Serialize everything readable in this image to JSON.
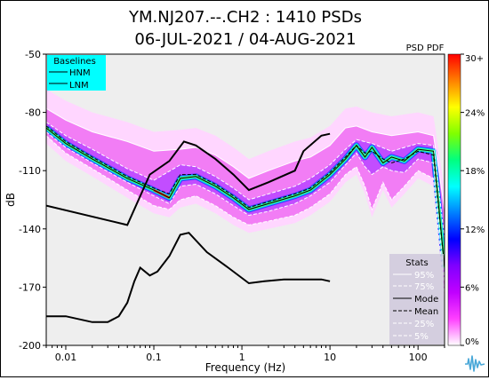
{
  "chart_data": {
    "type": "heatmap",
    "title_line1": "YM.NJ207.--.CH2 : 1410 PSDs",
    "title_line2": "06-JUL-2021 / 04-AUG-2021",
    "xlabel": "Frequency (Hz)",
    "ylabel": "dB",
    "xscale": "log",
    "xlim": [
      0.006,
      200
    ],
    "ylim": [
      -200,
      -50
    ],
    "yticks": [
      -50,
      -80,
      -110,
      -140,
      -170,
      -200
    ],
    "xticks": [
      {
        "value": 0.01,
        "label": "0.01"
      },
      {
        "value": 0.1,
        "label": "0.1"
      },
      {
        "value": 1,
        "label": "1"
      },
      {
        "value": 10,
        "label": "10"
      },
      {
        "value": 100,
        "label": "100"
      }
    ],
    "colorbar": {
      "title": "PSD PDF",
      "labels": [
        "30+",
        "24%",
        "18%",
        "12%",
        "6%",
        "0%"
      ],
      "stops": [
        "#ff0000",
        "#ff8000",
        "#ffff00",
        "#80ff00",
        "#00ff80",
        "#00ffff",
        "#0080ff",
        "#0000ff",
        "#8000ff",
        "#c000ff",
        "#ff40ff",
        "#ffffff"
      ]
    },
    "baselines": {
      "title": "Baselines",
      "entries": [
        "HNM",
        "LNM"
      ],
      "background": "#00ffff",
      "hnm": [
        [
          0.006,
          -128
        ],
        [
          0.05,
          -138
        ],
        [
          0.09,
          -112
        ],
        [
          0.15,
          -105
        ],
        [
          0.22,
          -95
        ],
        [
          0.3,
          -97
        ],
        [
          0.5,
          -104
        ],
        [
          0.8,
          -112
        ],
        [
          1.2,
          -120
        ],
        [
          2,
          -116
        ],
        [
          4,
          -110
        ],
        [
          5,
          -100
        ],
        [
          8,
          -92
        ],
        [
          10,
          -91
        ]
      ],
      "lnm": [
        [
          0.006,
          -185
        ],
        [
          0.01,
          -185
        ],
        [
          0.02,
          -188
        ],
        [
          0.03,
          -188
        ],
        [
          0.04,
          -185
        ],
        [
          0.05,
          -178
        ],
        [
          0.06,
          -167
        ],
        [
          0.07,
          -160
        ],
        [
          0.09,
          -164
        ],
        [
          0.11,
          -162
        ],
        [
          0.15,
          -154
        ],
        [
          0.2,
          -143
        ],
        [
          0.25,
          -142
        ],
        [
          0.4,
          -152
        ],
        [
          0.7,
          -160
        ],
        [
          1.2,
          -168
        ],
        [
          1.8,
          -167
        ],
        [
          3,
          -166
        ],
        [
          5,
          -166
        ],
        [
          8,
          -166
        ],
        [
          10,
          -167
        ]
      ]
    },
    "stats": {
      "title": "Stats",
      "entries": [
        "95%",
        "75%",
        "Mode",
        "Mean",
        "25%",
        "5%"
      ],
      "mode": [
        [
          0.006,
          -88
        ],
        [
          0.01,
          -96
        ],
        [
          0.02,
          -104
        ],
        [
          0.05,
          -114
        ],
        [
          0.1,
          -120
        ],
        [
          0.15,
          -124
        ],
        [
          0.2,
          -114
        ],
        [
          0.3,
          -113
        ],
        [
          0.5,
          -118
        ],
        [
          0.8,
          -124
        ],
        [
          1.2,
          -130
        ],
        [
          2,
          -127
        ],
        [
          4,
          -123
        ],
        [
          6,
          -120
        ],
        [
          10,
          -112
        ],
        [
          15,
          -104
        ],
        [
          20,
          -97
        ],
        [
          25,
          -103
        ],
        [
          30,
          -98
        ],
        [
          40,
          -106
        ],
        [
          50,
          -103
        ],
        [
          70,
          -105
        ],
        [
          100,
          -99
        ],
        [
          150,
          -100
        ],
        [
          200,
          -160
        ]
      ],
      "mean": [
        [
          0.006,
          -87
        ],
        [
          0.01,
          -95
        ],
        [
          0.02,
          -103
        ],
        [
          0.05,
          -113
        ],
        [
          0.1,
          -119
        ],
        [
          0.15,
          -122
        ],
        [
          0.2,
          -112
        ],
        [
          0.3,
          -112
        ],
        [
          0.5,
          -117
        ],
        [
          0.8,
          -123
        ],
        [
          1.2,
          -129
        ],
        [
          2,
          -126
        ],
        [
          4,
          -122
        ],
        [
          6,
          -119
        ],
        [
          10,
          -111
        ],
        [
          15,
          -103
        ],
        [
          20,
          -97
        ],
        [
          25,
          -101
        ],
        [
          30,
          -100
        ],
        [
          40,
          -104
        ],
        [
          50,
          -106
        ],
        [
          70,
          -104
        ],
        [
          100,
          -100
        ],
        [
          150,
          -102
        ],
        [
          200,
          -160
        ]
      ],
      "p95": [
        [
          0.006,
          -78
        ],
        [
          0.01,
          -84
        ],
        [
          0.02,
          -90
        ],
        [
          0.05,
          -95
        ],
        [
          0.1,
          -100
        ],
        [
          0.2,
          -99
        ],
        [
          0.3,
          -98
        ],
        [
          0.5,
          -102
        ],
        [
          0.8,
          -108
        ],
        [
          1.2,
          -114
        ],
        [
          2,
          -110
        ],
        [
          4,
          -105
        ],
        [
          6,
          -103
        ],
        [
          10,
          -97
        ],
        [
          15,
          -88
        ],
        [
          20,
          -87
        ],
        [
          30,
          -90
        ],
        [
          50,
          -92
        ],
        [
          100,
          -90
        ],
        [
          150,
          -92
        ],
        [
          200,
          -130
        ]
      ],
      "p75": [
        [
          0.006,
          -85
        ],
        [
          0.01,
          -92
        ],
        [
          0.02,
          -99
        ],
        [
          0.05,
          -109
        ],
        [
          0.1,
          -115
        ],
        [
          0.2,
          -107
        ],
        [
          0.3,
          -108
        ],
        [
          0.5,
          -113
        ],
        [
          0.8,
          -119
        ],
        [
          1.2,
          -125
        ],
        [
          2,
          -122
        ],
        [
          4,
          -118
        ],
        [
          6,
          -114
        ],
        [
          10,
          -107
        ],
        [
          15,
          -99
        ],
        [
          20,
          -94
        ],
        [
          30,
          -96
        ],
        [
          50,
          -100
        ],
        [
          100,
          -96
        ],
        [
          150,
          -97
        ],
        [
          200,
          -145
        ]
      ],
      "p25": [
        [
          0.006,
          -90
        ],
        [
          0.01,
          -98
        ],
        [
          0.02,
          -106
        ],
        [
          0.05,
          -116
        ],
        [
          0.1,
          -123
        ],
        [
          0.15,
          -127
        ],
        [
          0.2,
          -118
        ],
        [
          0.3,
          -117
        ],
        [
          0.5,
          -122
        ],
        [
          0.8,
          -128
        ],
        [
          1.2,
          -133
        ],
        [
          2,
          -131
        ],
        [
          4,
          -127
        ],
        [
          6,
          -123
        ],
        [
          10,
          -116
        ],
        [
          15,
          -107
        ],
        [
          20,
          -101
        ],
        [
          25,
          -108
        ],
        [
          30,
          -112
        ],
        [
          40,
          -108
        ],
        [
          50,
          -110
        ],
        [
          70,
          -111
        ],
        [
          100,
          -104
        ],
        [
          150,
          -106
        ],
        [
          200,
          -168
        ]
      ],
      "p5": [
        [
          0.006,
          -92
        ],
        [
          0.01,
          -101
        ],
        [
          0.02,
          -109
        ],
        [
          0.05,
          -120
        ],
        [
          0.1,
          -128
        ],
        [
          0.15,
          -130
        ],
        [
          0.2,
          -125
        ],
        [
          0.3,
          -123
        ],
        [
          0.5,
          -128
        ],
        [
          0.8,
          -134
        ],
        [
          1.2,
          -138
        ],
        [
          2,
          -136
        ],
        [
          4,
          -133
        ],
        [
          6,
          -129
        ],
        [
          10,
          -122
        ],
        [
          15,
          -112
        ],
        [
          20,
          -108
        ],
        [
          25,
          -118
        ],
        [
          30,
          -130
        ],
        [
          40,
          -116
        ],
        [
          50,
          -125
        ],
        [
          70,
          -118
        ],
        [
          100,
          -110
        ],
        [
          150,
          -114
        ],
        [
          200,
          -175
        ]
      ]
    }
  }
}
